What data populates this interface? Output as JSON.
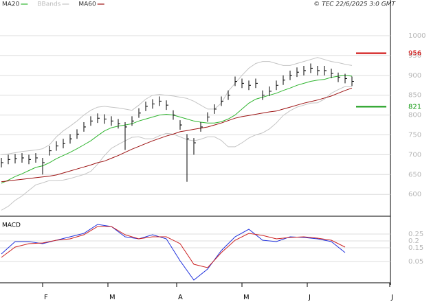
{
  "header": {
    "copyright": "© TEC 22/6/2025 3:0 GMT"
  },
  "chart_data": [
    {
      "type": "ohlc",
      "x": [
        0,
        2,
        4,
        6,
        8,
        10,
        12,
        14,
        16,
        18,
        20,
        22,
        24,
        26,
        28,
        30,
        32,
        34,
        36,
        38,
        40,
        42,
        44,
        46,
        48,
        50,
        52,
        54,
        56,
        58,
        60,
        62,
        64,
        66,
        68,
        70,
        72,
        74,
        76,
        78,
        80,
        82,
        84,
        86,
        88,
        90,
        92,
        94,
        96,
        98,
        100,
        102
      ],
      "high": [
        692,
        700,
        702,
        704,
        700,
        704,
        692,
        722,
        734,
        740,
        752,
        764,
        782,
        797,
        804,
        802,
        797,
        790,
        782,
        797,
        817,
        834,
        840,
        847,
        837,
        812,
        787,
        752,
        742,
        782,
        807,
        827,
        847,
        862,
        897,
        892,
        887,
        892,
        862,
        872,
        887,
        900,
        912,
        920,
        924,
        930,
        924,
        924,
        917,
        907,
        904,
        897
      ],
      "low": [
        668,
        676,
        678,
        680,
        676,
        680,
        650,
        698,
        710,
        716,
        728,
        740,
        758,
        773,
        780,
        778,
        773,
        766,
        712,
        773,
        793,
        810,
        816,
        823,
        813,
        788,
        763,
        632,
        700,
        758,
        783,
        803,
        823,
        838,
        873,
        868,
        863,
        868,
        838,
        848,
        863,
        876,
        888,
        896,
        900,
        906,
        900,
        900,
        893,
        883,
        880,
        873
      ],
      "close": [
        680,
        688,
        690,
        692,
        688,
        692,
        680,
        710,
        722,
        728,
        740,
        752,
        770,
        785,
        792,
        790,
        785,
        778,
        770,
        785,
        805,
        822,
        828,
        835,
        825,
        800,
        775,
        740,
        730,
        770,
        795,
        815,
        835,
        850,
        885,
        880,
        875,
        880,
        850,
        860,
        875,
        888,
        900,
        908,
        912,
        918,
        912,
        912,
        905,
        895,
        892,
        885
      ],
      "color": "#000000",
      "series": [
        {
          "name": "MA20",
          "color": "#2fb52f",
          "values": [
            628,
            636,
            645,
            652,
            660,
            668,
            672,
            680,
            690,
            698,
            706,
            715,
            725,
            735,
            748,
            760,
            768,
            772,
            775,
            778,
            785,
            790,
            795,
            800,
            802,
            800,
            795,
            790,
            785,
            782,
            780,
            780,
            783,
            790,
            800,
            815,
            830,
            840,
            845,
            850,
            855,
            862,
            868,
            875,
            880,
            885,
            888,
            890,
            895,
            898,
            900,
            898
          ]
        },
        {
          "name": "BBands",
          "color": "#c4c4c4",
          "upper": [
            700,
            702,
            705,
            708,
            710,
            712,
            715,
            725,
            745,
            760,
            772,
            785,
            800,
            812,
            820,
            822,
            820,
            818,
            815,
            812,
            825,
            840,
            850,
            852,
            850,
            848,
            845,
            842,
            835,
            825,
            815,
            815,
            830,
            860,
            880,
            900,
            918,
            930,
            935,
            935,
            930,
            925,
            925,
            930,
            935,
            940,
            945,
            940,
            935,
            932,
            928,
            925
          ],
          "lower": [
            560,
            570,
            585,
            596,
            610,
            624,
            629,
            635,
            635,
            636,
            640,
            645,
            650,
            658,
            676,
            698,
            716,
            726,
            735,
            744,
            745,
            740,
            740,
            748,
            754,
            752,
            745,
            738,
            735,
            739,
            745,
            745,
            736,
            720,
            720,
            730,
            742,
            750,
            755,
            765,
            780,
            799,
            811,
            820,
            825,
            830,
            831,
            840,
            855,
            864,
            872,
            871
          ]
        },
        {
          "name": "MA60",
          "color": "#9c1111",
          "values": [
            632,
            634,
            636,
            638,
            640,
            642,
            644,
            646,
            649,
            654,
            659,
            664,
            669,
            674,
            680,
            684,
            691,
            698,
            706,
            714,
            721,
            728,
            735,
            741,
            747,
            752,
            758,
            761,
            764,
            767,
            770,
            775,
            780,
            786,
            792,
            796,
            799,
            802,
            805,
            808,
            810,
            815,
            820,
            825,
            830,
            834,
            838,
            843,
            848,
            855,
            862,
            868
          ]
        }
      ],
      "levels": [
        {
          "value": 956,
          "color": "#cc0000"
        },
        {
          "value": 821,
          "color": "#119911"
        }
      ],
      "xlim": [
        -0.4,
        113.2
      ],
      "ylim": [
        545,
        1090
      ],
      "yticks": [
        600,
        650,
        700,
        750,
        800,
        850,
        900,
        950,
        1000
      ],
      "grid": true
    },
    {
      "type": "line",
      "title": "MACD",
      "x": [
        0,
        4,
        8,
        12,
        16,
        20,
        24,
        28,
        32,
        36,
        40,
        44,
        48,
        52,
        56,
        60,
        64,
        68,
        72,
        76,
        80,
        84,
        88,
        92,
        96,
        100
      ],
      "series": [
        {
          "color": "#2233dd",
          "values": [
            0.105,
            0.195,
            0.195,
            0.18,
            0.205,
            0.23,
            0.255,
            0.32,
            0.305,
            0.23,
            0.215,
            0.245,
            0.215,
            0.055,
            -0.085,
            -0.005,
            0.13,
            0.23,
            0.285,
            0.205,
            0.195,
            0.23,
            0.225,
            0.215,
            0.195,
            0.115
          ]
        },
        {
          "color": "#cc2222",
          "values": [
            0.08,
            0.155,
            0.18,
            0.185,
            0.205,
            0.215,
            0.245,
            0.305,
            0.305,
            0.245,
            0.215,
            0.23,
            0.23,
            0.18,
            0.03,
            0.005,
            0.115,
            0.205,
            0.255,
            0.24,
            0.215,
            0.225,
            0.23,
            0.22,
            0.205,
            0.155
          ]
        }
      ],
      "xlim": [
        -0.4,
        113.2
      ],
      "ylim": [
        -0.105,
        0.375
      ],
      "yticks": [
        {
          "value": 0.25,
          "label": "0.25"
        },
        {
          "value": 0.2,
          "label": "0.2"
        },
        {
          "value": 0.15,
          "label": "0.15"
        },
        {
          "value": 0.05,
          "label": "0.05"
        }
      ],
      "xticks": [
        {
          "value": 12,
          "label": "F"
        },
        {
          "value": 31,
          "label": "M"
        },
        {
          "value": 51,
          "label": "A"
        },
        {
          "value": 70,
          "label": "M"
        },
        {
          "value": 89,
          "label": "J"
        },
        {
          "value": 113,
          "label": "J"
        }
      ],
      "grid": true
    }
  ]
}
